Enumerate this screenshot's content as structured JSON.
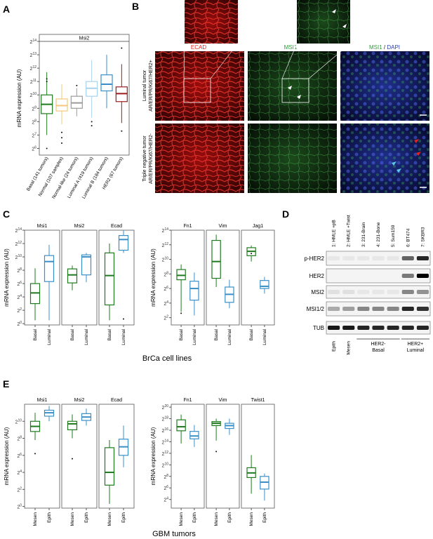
{
  "panels": {
    "A": {
      "letter": "A"
    },
    "B": {
      "letter": "B",
      "stains": [
        "ECAD",
        "MSI1",
        "MSI1",
        "DAPI"
      ],
      "stain_sep": " / ",
      "rows": [
        {
          "line1": "Luminal tumor",
          "line2": "AR/ER/PR/Ki67/HER2+"
        },
        {
          "line1": "Triple negative tumor",
          "line2": "AR/ER/PR/Ki67/HER2-"
        }
      ]
    },
    "C": {
      "letter": "C",
      "xlabel": "BrCa cell lines"
    },
    "D": {
      "letter": "D",
      "lanes": [
        "1: HMLE +pB",
        "2: HMLE +Twist",
        "3: 231-Brain",
        "4: 231-Bone",
        "5: Sum159",
        "6: BT474",
        "7: SKBR3"
      ],
      "bands": [
        "p-HER2",
        "HER2",
        "MSI2",
        "MSI1/2",
        "TUB"
      ],
      "groups": [
        "Epith",
        "Mesen",
        "HER2-",
        "Basal",
        "HER2+",
        "Luminal"
      ]
    },
    "E": {
      "letter": "E",
      "xlabel": "GBM tumors"
    }
  },
  "colors": {
    "basal": "#1f7a1f",
    "luminal": "#3b8fc6",
    "red": "#e8201e",
    "green": "#2e9e3a",
    "blue": "#2a3fb0"
  },
  "chart_data": [
    {
      "id": "A",
      "type": "box",
      "facet": "Msi2",
      "ylabel": "mRNA expression (AU)",
      "log2": true,
      "ylim": [
        5.5,
        14
      ],
      "yticks": [
        6,
        7,
        8,
        9,
        10,
        11,
        12,
        13,
        14
      ],
      "categories": [
        "Basal (141 tumors)",
        "Normal (107 samples)",
        "Normal-like (24 tumors)",
        "Luminal A (419 tumors)",
        "Luminal B (184 tumors)",
        "HER2 (67 tumors)"
      ],
      "colors": [
        "#1f7a1f",
        "#f3c878",
        "#9b9b9b",
        "#a9d2ec",
        "#3b8fc6",
        "#9b1b1b"
      ],
      "boxes": [
        {
          "min": 7.0,
          "q1": 8.6,
          "median": 9.3,
          "q3": 10.0,
          "max": 11.7
        },
        {
          "min": 7.8,
          "q1": 8.8,
          "median": 9.2,
          "q3": 9.7,
          "max": 10.8
        },
        {
          "min": 8.4,
          "q1": 9.0,
          "median": 9.4,
          "q3": 9.9,
          "max": 10.5
        },
        {
          "min": 8.3,
          "q1": 9.9,
          "median": 10.5,
          "q3": 11.0,
          "max": 12.6
        },
        {
          "min": 9.0,
          "q1": 10.3,
          "median": 10.8,
          "q3": 11.5,
          "max": 13.0
        },
        {
          "min": 7.9,
          "q1": 9.5,
          "median": 10.1,
          "q3": 10.6,
          "max": 12.3
        }
      ],
      "outliers": [
        [
          0,
          6.0
        ],
        [
          0,
          11.2
        ],
        [
          0,
          11.0
        ],
        [
          1,
          7.2
        ],
        [
          1,
          6.8
        ],
        [
          1,
          6.4
        ],
        [
          2,
          10.7
        ],
        [
          3,
          7.7
        ],
        [
          3,
          8.0
        ],
        [
          5,
          13.5
        ],
        [
          5,
          7.3
        ]
      ]
    },
    {
      "id": "C1",
      "type": "box",
      "ylabel": "mRNA expression (AU)",
      "log2": true,
      "ylim": [
        -0.2,
        14
      ],
      "yticks": [
        0,
        2,
        4,
        6,
        8,
        10,
        12,
        14
      ],
      "facets": [
        {
          "name": "Msi1",
          "categories": [
            "Basal",
            "Luminal"
          ],
          "boxes": [
            {
              "min": 0.5,
              "q1": 3.0,
              "median": 4.6,
              "q3": 6.0,
              "max": 8.3
            },
            {
              "min": 0.5,
              "q1": 6.3,
              "median": 9.3,
              "q3": 10.2,
              "max": 11.8
            }
          ]
        },
        {
          "name": "Msi2",
          "categories": [
            "Basal",
            "Luminal"
          ],
          "boxes": [
            {
              "min": 5.0,
              "q1": 6.1,
              "median": 7.3,
              "q3": 8.2,
              "max": 8.7
            },
            {
              "min": 6.2,
              "q1": 7.3,
              "median": 10.0,
              "q3": 10.3,
              "max": 10.6
            }
          ]
        },
        {
          "name": "Ecad",
          "categories": [
            "Basal",
            "Luminal"
          ],
          "boxes": [
            {
              "min": 0.5,
              "q1": 2.8,
              "median": 7.2,
              "q3": 10.6,
              "max": 12.0
            },
            {
              "min": 10.6,
              "q1": 11.0,
              "median": 12.6,
              "q3": 13.2,
              "max": 14.0
            }
          ]
        }
      ],
      "outliers": [
        [
          2,
          1,
          0.7
        ]
      ]
    },
    {
      "id": "C2",
      "type": "box",
      "ylabel": "mRNA expression (AU)",
      "log2": true,
      "ylim": [
        1,
        14
      ],
      "yticks": [
        2,
        4,
        6,
        8,
        10,
        12,
        14
      ],
      "facets": [
        {
          "name": "Fn1",
          "categories": [
            "Basal",
            "Luminal"
          ],
          "boxes": [
            {
              "min": 2.8,
              "q1": 7.2,
              "median": 7.8,
              "q3": 8.6,
              "max": 9.3
            },
            {
              "min": 2.3,
              "q1": 4.4,
              "median": 6.0,
              "q3": 7.0,
              "max": 8.2
            }
          ]
        },
        {
          "name": "Vim",
          "categories": [
            "Basal",
            "Luminal"
          ],
          "boxes": [
            {
              "min": 6.2,
              "q1": 7.4,
              "median": 9.7,
              "q3": 12.6,
              "max": 13.4
            },
            {
              "min": 3.3,
              "q1": 4.1,
              "median": 5.2,
              "q3": 6.2,
              "max": 7.2
            }
          ]
        },
        {
          "name": "Jag1",
          "categories": [
            "Basal",
            "Luminal"
          ],
          "boxes": [
            {
              "min": 9.7,
              "q1": 10.5,
              "median": 11.1,
              "q3": 11.6,
              "max": 11.9
            },
            {
              "min": 5.3,
              "q1": 6.0,
              "median": 6.3,
              "q3": 7.1,
              "max": 7.6
            }
          ]
        }
      ],
      "outliers": [
        [
          0,
          0,
          2.6
        ],
        [
          2,
          0,
          10.8
        ]
      ]
    },
    {
      "id": "E1",
      "type": "box",
      "ylabel": "mRNA expression (AU)",
      "log2": true,
      "ylim": [
        -0.2,
        12
      ],
      "yticks": [
        0,
        2,
        4,
        6,
        8,
        10
      ],
      "facets": [
        {
          "name": "Msi1",
          "categories": [
            "Mesen",
            "Epith"
          ],
          "boxes": [
            {
              "min": 7.8,
              "q1": 8.8,
              "median": 9.4,
              "q3": 10.0,
              "max": 11.0
            },
            {
              "min": 10.0,
              "q1": 10.6,
              "median": 11.0,
              "q3": 11.3,
              "max": 11.8
            }
          ]
        },
        {
          "name": "Msi2",
          "categories": [
            "Mesen",
            "Epith"
          ],
          "boxes": [
            {
              "min": 8.0,
              "q1": 9.0,
              "median": 9.7,
              "q3": 10.0,
              "max": 10.8
            },
            {
              "min": 9.5,
              "q1": 10.1,
              "median": 10.5,
              "q3": 10.9,
              "max": 11.5
            }
          ]
        },
        {
          "name": "Ecad",
          "categories": [
            "Mesen",
            "Epith"
          ],
          "boxes": [
            {
              "min": 0.3,
              "q1": 2.5,
              "median": 4.0,
              "q3": 6.9,
              "max": 7.8
            },
            {
              "min": 4.6,
              "q1": 6.0,
              "median": 7.0,
              "q3": 7.9,
              "max": 9.5
            }
          ]
        }
      ],
      "outliers": [
        [
          0,
          0,
          6.2
        ],
        [
          1,
          0,
          5.6
        ]
      ]
    },
    {
      "id": "E2",
      "type": "box",
      "ylabel": "mRNA expression (AU)",
      "log2": true,
      "ylim": [
        2.5,
        20.5
      ],
      "yticks": [
        4,
        6,
        8,
        10,
        12,
        14,
        16,
        18,
        20
      ],
      "facets": [
        {
          "name": "Fn1",
          "categories": [
            "Mesen",
            "Epith"
          ],
          "boxes": [
            {
              "min": 13.7,
              "q1": 15.9,
              "median": 16.6,
              "q3": 17.8,
              "max": 18.7
            },
            {
              "min": 13.1,
              "q1": 14.5,
              "median": 15.0,
              "q3": 15.8,
              "max": 16.9
            }
          ]
        },
        {
          "name": "Vim",
          "categories": [
            "Mesen",
            "Epith"
          ],
          "boxes": [
            {
              "min": 14.2,
              "q1": 16.8,
              "median": 17.2,
              "q3": 17.5,
              "max": 18.0
            },
            {
              "min": 15.2,
              "q1": 16.3,
              "median": 16.8,
              "q3": 17.2,
              "max": 18.0
            }
          ]
        },
        {
          "name": "Twist1",
          "categories": [
            "Mesen",
            "Epith"
          ],
          "boxes": [
            {
              "min": 5.0,
              "q1": 7.8,
              "median": 8.6,
              "q3": 9.5,
              "max": 11.7
            },
            {
              "min": 3.8,
              "q1": 5.8,
              "median": 7.0,
              "q3": 8.0,
              "max": 8.5
            }
          ]
        }
      ],
      "outliers": [
        [
          1,
          0,
          12.3
        ]
      ]
    }
  ]
}
